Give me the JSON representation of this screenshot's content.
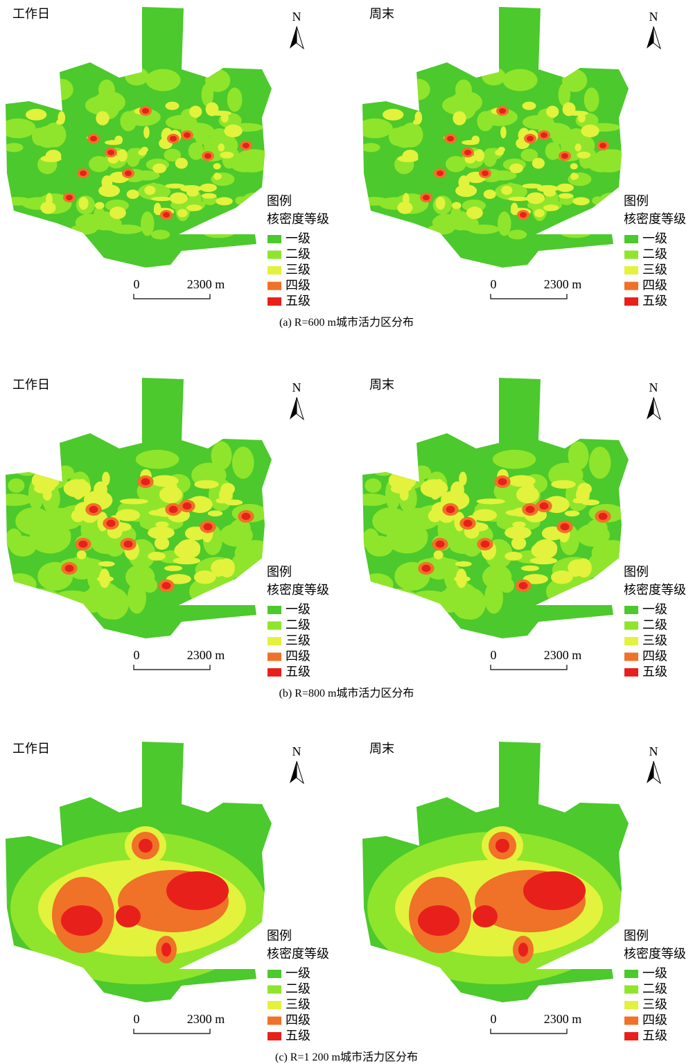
{
  "panels": [
    {
      "caption": "(a) R=600 m城市活力区分布",
      "maps": [
        {
          "title": "工作日",
          "north": "N",
          "legend": {
            "title": "图例",
            "subtitle": "核密度等级",
            "items": [
              {
                "label": "一级",
                "color": "#4cc92c"
              },
              {
                "label": "二级",
                "color": "#8fe52b"
              },
              {
                "label": "三级",
                "color": "#e3f23c"
              },
              {
                "label": "四级",
                "color": "#f07128"
              },
              {
                "label": "五级",
                "color": "#e8201c"
              }
            ]
          },
          "scale": {
            "start": "0",
            "end": "2300 m"
          }
        },
        {
          "title": "周末",
          "north": "N",
          "legend": {
            "title": "图例",
            "subtitle": "核密度等级",
            "items": [
              {
                "label": "一级",
                "color": "#4cc92c"
              },
              {
                "label": "二级",
                "color": "#8fe52b"
              },
              {
                "label": "三级",
                "color": "#e3f23c"
              },
              {
                "label": "四级",
                "color": "#f07128"
              },
              {
                "label": "五级",
                "color": "#e8201c"
              }
            ]
          },
          "scale": {
            "start": "0",
            "end": "2300 m"
          }
        }
      ]
    },
    {
      "caption": "(b) R=800 m城市活力区分布",
      "maps": [
        {
          "title": "工作日",
          "north": "N",
          "legend": {
            "title": "图例",
            "subtitle": "核密度等级",
            "items": [
              {
                "label": "一级",
                "color": "#4cc92c"
              },
              {
                "label": "二级",
                "color": "#8fe52b"
              },
              {
                "label": "三级",
                "color": "#e3f23c"
              },
              {
                "label": "四级",
                "color": "#f07128"
              },
              {
                "label": "五级",
                "color": "#e8201c"
              }
            ]
          },
          "scale": {
            "start": "0",
            "end": "2300 m"
          }
        },
        {
          "title": "周末",
          "north": "N",
          "legend": {
            "title": "图例",
            "subtitle": "核密度等级",
            "items": [
              {
                "label": "一级",
                "color": "#4cc92c"
              },
              {
                "label": "二级",
                "color": "#8fe52b"
              },
              {
                "label": "三级",
                "color": "#e3f23c"
              },
              {
                "label": "四级",
                "color": "#f07128"
              },
              {
                "label": "五级",
                "color": "#e8201c"
              }
            ]
          },
          "scale": {
            "start": "0",
            "end": "2300 m"
          }
        }
      ]
    },
    {
      "caption": "(c) R=1 200 m城市活力区分布",
      "maps": [
        {
          "title": "工作日",
          "north": "N",
          "legend": {
            "title": "图例",
            "subtitle": "核密度等级",
            "items": [
              {
                "label": "一级",
                "color": "#4cc92c"
              },
              {
                "label": "二级",
                "color": "#8fe52b"
              },
              {
                "label": "三级",
                "color": "#e3f23c"
              },
              {
                "label": "四级",
                "color": "#f07128"
              },
              {
                "label": "五级",
                "color": "#e8201c"
              }
            ]
          },
          "scale": {
            "start": "0",
            "end": "2300 m"
          }
        },
        {
          "title": "周末",
          "north": "N",
          "legend": {
            "title": "图例",
            "subtitle": "核密度等级",
            "items": [
              {
                "label": "一级",
                "color": "#4cc92c"
              },
              {
                "label": "二级",
                "color": "#8fe52b"
              },
              {
                "label": "三级",
                "color": "#e3f23c"
              },
              {
                "label": "四级",
                "color": "#f07128"
              },
              {
                "label": "五级",
                "color": "#e8201c"
              }
            ]
          },
          "scale": {
            "start": "0",
            "end": "2300 m"
          }
        }
      ]
    }
  ]
}
